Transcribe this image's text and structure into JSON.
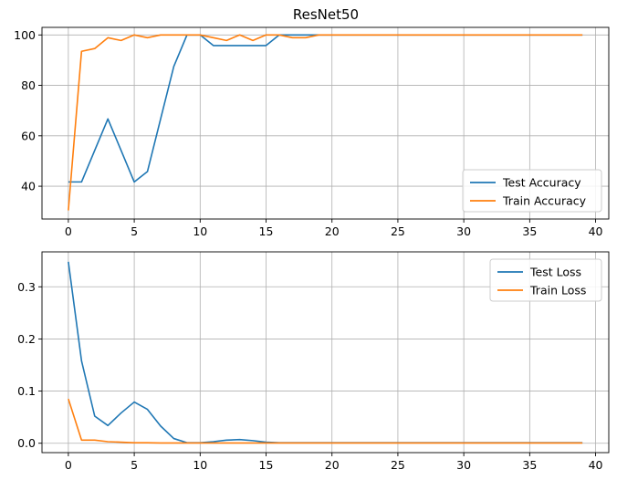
{
  "chart_data": [
    {
      "type": "line",
      "title": "ResNet50",
      "xlabel": "",
      "ylabel": "",
      "xlim": [
        -2,
        41
      ],
      "ylim": [
        27,
        103
      ],
      "xticks": [
        0,
        5,
        10,
        15,
        20,
        25,
        30,
        35,
        40
      ],
      "yticks": [
        40,
        60,
        80,
        100
      ],
      "grid": true,
      "legend_position": "lower-right",
      "x": [
        0,
        1,
        2,
        3,
        4,
        5,
        6,
        7,
        8,
        9,
        10,
        11,
        12,
        13,
        14,
        15,
        16,
        17,
        18,
        19,
        20,
        21,
        22,
        23,
        24,
        25,
        26,
        27,
        28,
        29,
        30,
        31,
        32,
        33,
        34,
        35,
        36,
        37,
        38,
        39
      ],
      "series": [
        {
          "name": "Test Accuracy",
          "color": "#1f77b4",
          "values": [
            41.7,
            41.7,
            54.2,
            66.7,
            54.2,
            41.7,
            45.8,
            66.7,
            87.5,
            100,
            100,
            95.8,
            95.8,
            95.8,
            95.8,
            95.8,
            100,
            100,
            100,
            100,
            100,
            100,
            100,
            100,
            100,
            100,
            100,
            100,
            100,
            100,
            100,
            100,
            100,
            100,
            100,
            100,
            100,
            100,
            100,
            100
          ]
        },
        {
          "name": "Train Accuracy",
          "color": "#ff7f0e",
          "values": [
            30.4,
            93.5,
            94.6,
            98.9,
            97.8,
            100,
            98.9,
            100,
            100,
            100,
            100,
            98.9,
            97.8,
            100,
            97.8,
            100,
            100,
            98.9,
            98.9,
            100,
            100,
            100,
            100,
            100,
            100,
            100,
            100,
            100,
            100,
            100,
            100,
            100,
            100,
            100,
            100,
            100,
            100,
            100,
            100,
            100
          ]
        }
      ]
    },
    {
      "type": "line",
      "title": "",
      "xlabel": "",
      "ylabel": "",
      "xlim": [
        -2,
        41
      ],
      "ylim": [
        -0.018,
        0.367
      ],
      "xticks": [
        0,
        5,
        10,
        15,
        20,
        25,
        30,
        35,
        40
      ],
      "yticks": [
        0.0,
        0.1,
        0.2,
        0.3
      ],
      "ytick_labels": [
        "0.0",
        "0.1",
        "0.2",
        "0.3"
      ],
      "grid": true,
      "legend_position": "upper-right",
      "x": [
        0,
        1,
        2,
        3,
        4,
        5,
        6,
        7,
        8,
        9,
        10,
        11,
        12,
        13,
        14,
        15,
        16,
        17,
        18,
        19,
        20,
        21,
        22,
        23,
        24,
        25,
        26,
        27,
        28,
        29,
        30,
        31,
        32,
        33,
        34,
        35,
        36,
        37,
        38,
        39
      ],
      "series": [
        {
          "name": "Test Loss",
          "color": "#1f77b4",
          "values": [
            0.348,
            0.158,
            0.052,
            0.034,
            0.058,
            0.079,
            0.065,
            0.033,
            0.009,
            0.001,
            0.001,
            0.003,
            0.006,
            0.007,
            0.005,
            0.002,
            0.001,
            0.001,
            0.001,
            0.001,
            0.001,
            0.001,
            0.001,
            0.001,
            0.001,
            0.001,
            0.001,
            0.001,
            0.001,
            0.001,
            0.001,
            0.001,
            0.001,
            0.001,
            0.001,
            0.001,
            0.001,
            0.001,
            0.001,
            0.001
          ]
        },
        {
          "name": "Train Loss",
          "color": "#ff7f0e",
          "values": [
            0.085,
            0.006,
            0.006,
            0.003,
            0.002,
            0.001,
            0.001,
            0.0005,
            0.0005,
            0.0005,
            0.0005,
            0.0005,
            0.0005,
            0.0005,
            0.0005,
            0.0005,
            0.0005,
            0.0005,
            0.0005,
            0.0005,
            0.0005,
            0.0005,
            0.0005,
            0.0005,
            0.0005,
            0.0005,
            0.0005,
            0.0005,
            0.0005,
            0.0005,
            0.0005,
            0.0005,
            0.0005,
            0.0005,
            0.0005,
            0.0005,
            0.0005,
            0.0005,
            0.0005,
            0.0005
          ]
        }
      ]
    }
  ]
}
